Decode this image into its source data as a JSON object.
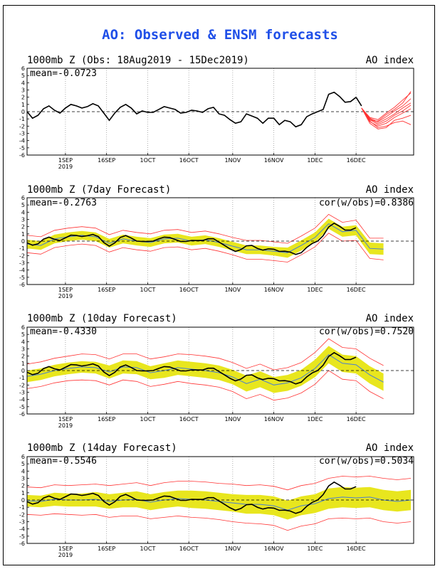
{
  "main_title": "AO: Observed & ENSM forecasts",
  "panels": [
    {
      "left_title": "1000mb Z (Obs: 18Aug2019 - 15Dec2019)",
      "right_title": "AO index",
      "mean": "mean=-0.0723",
      "cor": ""
    },
    {
      "left_title": "1000mb Z (7day Forecast)",
      "right_title": "AO index",
      "mean": "mean=-0.2763",
      "cor": "cor(w/obs)=0.8386"
    },
    {
      "left_title": "1000mb Z (10day Forecast)",
      "right_title": "AO index",
      "mean": "mean=-0.4330",
      "cor": "cor(w/obs)=0.7520"
    },
    {
      "left_title": "1000mb Z (14day Forecast)",
      "right_title": "AO index",
      "mean": "mean=-0.5546",
      "cor": "cor(w/obs)=0.5034"
    }
  ],
  "chart_data": {
    "type": "line",
    "x_tick_labels": [
      "1SEP",
      "16SEP",
      "1OCT",
      "16OCT",
      "1NOV",
      "16NOV",
      "1DEC",
      "16DEC"
    ],
    "x_tick_sublabels": [
      "2019",
      "",
      "",
      "",
      "",
      "",
      "",
      ""
    ],
    "x_tick_days": [
      14,
      29,
      44,
      59,
      75,
      90,
      105,
      120
    ],
    "xlim": [
      0,
      141
    ],
    "y_ticks": [
      -6,
      -5,
      -4,
      -3,
      -2,
      -1,
      0,
      1,
      2,
      3,
      4,
      5,
      6
    ],
    "ylim": [
      -6,
      6
    ],
    "colors": {
      "observed": "#000000",
      "forecast": "#ff3333",
      "spread": "#e8e61e",
      "ensemble_mean": "#4a7fd0"
    },
    "observed_series": {
      "name": "Observed AO",
      "x": [
        0,
        2,
        4,
        6,
        8,
        10,
        12,
        14,
        16,
        18,
        20,
        22,
        24,
        26,
        28,
        30,
        32,
        34,
        36,
        38,
        40,
        42,
        44,
        46,
        48,
        50,
        52,
        54,
        56,
        58,
        60,
        62,
        64,
        66,
        68,
        70,
        72,
        74,
        76,
        78,
        80,
        82,
        84,
        86,
        88,
        90,
        92,
        94,
        96,
        98,
        100,
        102,
        104,
        106,
        108,
        110,
        112,
        114,
        116,
        118,
        120
      ],
      "values": [
        0.0,
        -0.9,
        -0.5,
        0.4,
        0.8,
        0.2,
        -0.2,
        0.5,
        1.0,
        0.8,
        0.5,
        0.7,
        1.1,
        0.8,
        -0.2,
        -1.2,
        -0.2,
        0.6,
        1.0,
        0.5,
        -0.3,
        0.1,
        -0.1,
        -0.1,
        0.3,
        0.7,
        0.5,
        0.3,
        -0.2,
        -0.1,
        0.2,
        0.1,
        -0.1,
        0.4,
        0.6,
        -0.3,
        -0.5,
        -1.1,
        -1.6,
        -1.4,
        -0.3,
        -0.6,
        -0.9,
        -1.6,
        -0.9,
        -0.9,
        -1.8,
        -1.2,
        -1.4,
        -2.1,
        -1.8,
        -0.7,
        -0.3,
        0.0,
        0.3,
        2.4,
        2.7,
        2.1,
        1.3,
        1.4,
        2.0
      ],
      "tail_x": [
        120,
        122
      ],
      "tail_values": [
        2.0,
        0.8
      ]
    },
    "forecast_plume": {
      "name": "ENSM forecasts",
      "x": [
        122,
        125,
        128,
        131,
        134,
        137,
        140
      ],
      "members": [
        [
          0.5,
          -1.2,
          -1.3,
          -0.4,
          0.3,
          1.2,
          2.8
        ],
        [
          0.5,
          -1.0,
          -1.6,
          -1.0,
          -0.3,
          0.5,
          1.2
        ],
        [
          0.5,
          -1.4,
          -2.0,
          -1.6,
          -0.8,
          -0.2,
          0.4
        ],
        [
          0.5,
          -0.8,
          -1.1,
          -0.2,
          0.6,
          1.6,
          2.6
        ],
        [
          0.5,
          -1.6,
          -2.4,
          -2.2,
          -1.2,
          -0.9,
          -0.5
        ],
        [
          0.5,
          -1.1,
          -1.8,
          -1.3,
          -0.5,
          0.1,
          0.9
        ],
        [
          0.5,
          -0.9,
          -1.4,
          -0.7,
          0.1,
          0.8,
          1.8
        ],
        [
          0.5,
          -1.3,
          -2.2,
          -2.0,
          -1.5,
          -1.3,
          -1.8
        ]
      ]
    },
    "forecast_panels": [
      {
        "x": [
          0,
          5,
          10,
          15,
          20,
          25,
          30,
          35,
          40,
          45,
          50,
          55,
          60,
          65,
          70,
          75,
          80,
          85,
          90,
          95,
          100,
          105,
          110,
          115,
          120,
          125,
          130
        ],
        "mean": [
          -0.4,
          -0.6,
          0.3,
          0.6,
          0.8,
          0.6,
          -0.3,
          0.3,
          0.0,
          -0.2,
          0.3,
          0.4,
          0.0,
          0.2,
          -0.2,
          -0.7,
          -1.2,
          -1.2,
          -1.4,
          -1.6,
          -0.6,
          0.5,
          2.4,
          1.3,
          1.5,
          -1.0,
          -1.1
        ],
        "spread": [
          0.6,
          0.6,
          0.6,
          0.6,
          0.6,
          0.6,
          0.6,
          0.6,
          0.6,
          0.6,
          0.6,
          0.6,
          0.6,
          0.6,
          0.6,
          0.6,
          0.6,
          0.6,
          0.6,
          0.7,
          0.7,
          0.7,
          0.7,
          0.7,
          0.7,
          0.8,
          0.8
        ],
        "outer": [
          1.2,
          1.2,
          1.2,
          1.2,
          1.2,
          1.2,
          1.2,
          1.2,
          1.2,
          1.2,
          1.2,
          1.2,
          1.2,
          1.2,
          1.2,
          1.2,
          1.3,
          1.3,
          1.3,
          1.3,
          1.3,
          1.3,
          1.3,
          1.3,
          1.4,
          1.4,
          1.5
        ]
      },
      {
        "x": [
          0,
          5,
          10,
          15,
          20,
          25,
          30,
          35,
          40,
          45,
          50,
          55,
          60,
          65,
          70,
          75,
          80,
          85,
          90,
          95,
          100,
          105,
          110,
          115,
          120,
          125,
          130
        ],
        "mean": [
          -0.8,
          -0.5,
          0.0,
          0.3,
          0.5,
          0.4,
          -0.2,
          0.5,
          0.4,
          -0.3,
          0.0,
          0.4,
          0.2,
          0.0,
          -0.3,
          -0.9,
          -1.8,
          -1.2,
          -2.0,
          -1.7,
          -1.0,
          0.3,
          2.2,
          1.0,
          0.8,
          -0.6,
          -1.6
        ],
        "spread": [
          0.8,
          0.8,
          0.8,
          0.8,
          0.8,
          0.8,
          0.9,
          0.9,
          0.9,
          0.9,
          1.0,
          1.0,
          1.0,
          1.0,
          1.0,
          1.0,
          1.1,
          1.1,
          1.1,
          1.1,
          1.1,
          1.2,
          1.2,
          1.2,
          1.2,
          1.2,
          1.2
        ],
        "outer": [
          1.7,
          1.7,
          1.7,
          1.7,
          1.8,
          1.8,
          1.8,
          1.8,
          1.9,
          1.9,
          1.9,
          1.9,
          2.0,
          2.0,
          2.0,
          2.0,
          2.1,
          2.1,
          2.1,
          2.1,
          2.1,
          2.2,
          2.2,
          2.2,
          2.2,
          2.3,
          2.3
        ]
      },
      {
        "x": [
          0,
          5,
          10,
          15,
          20,
          25,
          30,
          35,
          40,
          45,
          50,
          55,
          60,
          65,
          70,
          75,
          80,
          85,
          90,
          95,
          100,
          105,
          110,
          115,
          120,
          125,
          130,
          135,
          140
        ],
        "mean": [
          -0.1,
          -0.2,
          0.1,
          0.0,
          0.0,
          0.1,
          -0.2,
          0.0,
          0.1,
          -0.3,
          0.0,
          0.2,
          0.1,
          0.0,
          -0.2,
          -0.4,
          -0.6,
          -0.6,
          -0.8,
          -1.4,
          -0.8,
          -0.5,
          0.2,
          0.4,
          0.3,
          0.4,
          0.0,
          -0.2,
          0.0
        ],
        "spread": [
          0.8,
          0.8,
          0.9,
          0.9,
          0.9,
          1.0,
          1.0,
          1.0,
          1.1,
          1.1,
          1.1,
          1.1,
          1.2,
          1.2,
          1.2,
          1.2,
          1.3,
          1.3,
          1.3,
          1.3,
          1.3,
          1.3,
          1.4,
          1.4,
          1.4,
          1.4,
          1.4,
          1.4,
          1.4
        ],
        "outer": [
          1.9,
          1.9,
          2.0,
          2.0,
          2.1,
          2.1,
          2.2,
          2.2,
          2.3,
          2.3,
          2.4,
          2.4,
          2.5,
          2.5,
          2.5,
          2.6,
          2.6,
          2.7,
          2.7,
          2.8,
          2.8,
          2.8,
          2.8,
          2.9,
          2.9,
          2.9,
          3.0,
          3.0,
          3.0
        ]
      }
    ]
  }
}
